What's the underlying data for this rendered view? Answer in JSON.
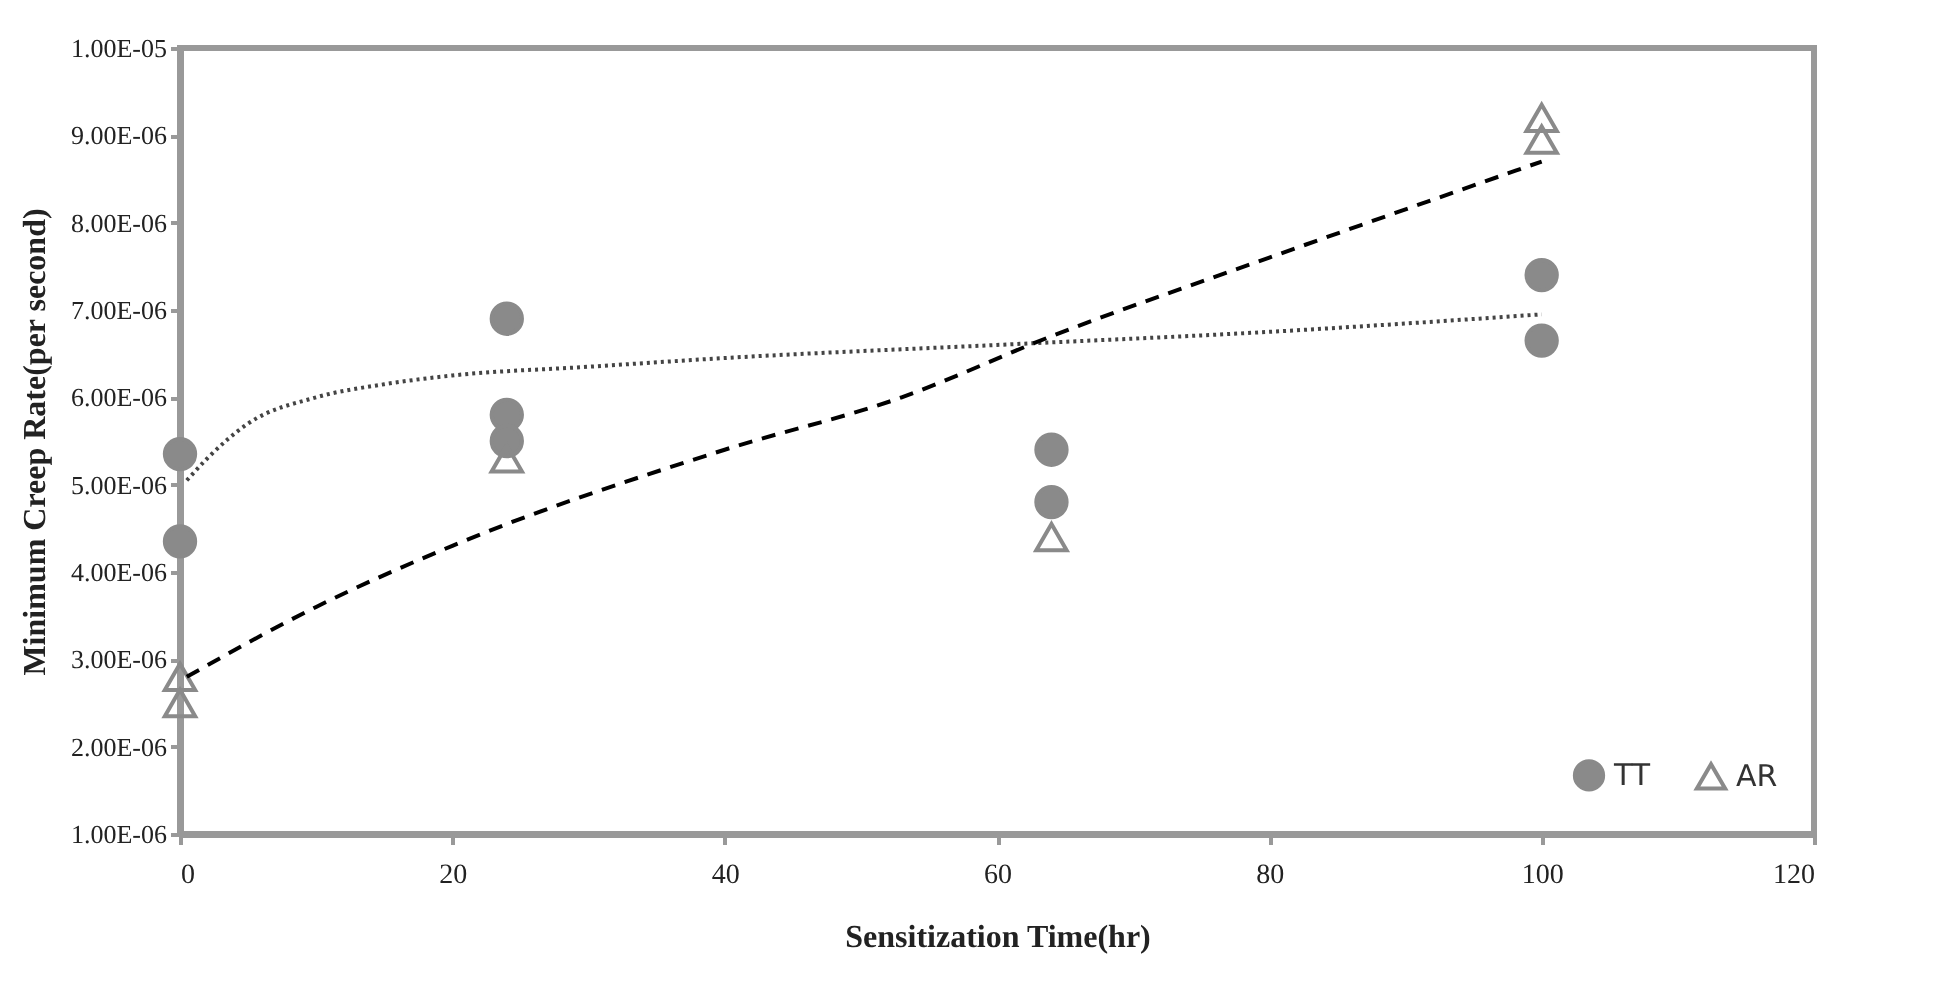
{
  "chart_data": {
    "type": "scatter",
    "xlabel": "Sensitization Time(hr)",
    "ylabel": "Minimum Creep Rate(per second)",
    "xlim": [
      0,
      120
    ],
    "xticks": [
      0,
      20,
      40,
      60,
      80,
      100,
      120
    ],
    "ylim": [
      1e-06,
      1e-05
    ],
    "yticks": [
      {
        "value": 1e-06,
        "label": "1.00E-06"
      },
      {
        "value": 2e-06,
        "label": "2.00E-06"
      },
      {
        "value": 3e-06,
        "label": "3.00E-06"
      },
      {
        "value": 4e-06,
        "label": "4.00E-06"
      },
      {
        "value": 5e-06,
        "label": "5.00E-06"
      },
      {
        "value": 6e-06,
        "label": "6.00E-06"
      },
      {
        "value": 7e-06,
        "label": "7.00E-06"
      },
      {
        "value": 8e-06,
        "label": "8.00E-06"
      },
      {
        "value": 9e-06,
        "label": "9.00E-06"
      },
      {
        "value": 1e-05,
        "label": "1.00E-05"
      }
    ],
    "grid": false,
    "legend": "bottom right",
    "series": [
      {
        "name": "TT",
        "color": "#8a8a8a",
        "marker": "circle",
        "x": [
          0,
          0,
          24,
          24,
          24,
          64,
          64,
          100,
          100
        ],
        "values": [
          5.35e-06,
          4.35e-06,
          6.9e-06,
          5.8e-06,
          5.5e-06,
          5.4e-06,
          4.8e-06,
          7.4e-06,
          6.65e-06
        ]
      },
      {
        "name": "AR",
        "color": "#8a8a8a",
        "marker": "triangle",
        "x": [
          0,
          0,
          24,
          64,
          100,
          100
        ],
        "values": [
          2.8e-06,
          2.5e-06,
          5.3e-06,
          4.4e-06,
          9.2e-06,
          8.95e-06
        ]
      },
      {
        "type": "line",
        "color": "#444444",
        "line_style": "dotted",
        "x": [
          0.5,
          2,
          5,
          10,
          15,
          20,
          30,
          40,
          60,
          80,
          100
        ],
        "values": [
          5.05e-06,
          5.3e-06,
          5.7e-06,
          6e-06,
          6.15e-06,
          6.25e-06,
          6.35e-06,
          6.45e-06,
          6.6e-06,
          6.75e-06,
          6.95e-06
        ]
      },
      {
        "type": "line",
        "color": "#000000",
        "line_style": "dashed",
        "x": [
          0.5,
          10,
          20,
          40,
          53,
          64,
          80,
          100
        ],
        "values": [
          2.8e-06,
          3.6e-06,
          4.3e-06,
          5.4e-06,
          6e-06,
          6.7e-06,
          7.6e-06,
          8.7e-06
        ]
      }
    ]
  }
}
